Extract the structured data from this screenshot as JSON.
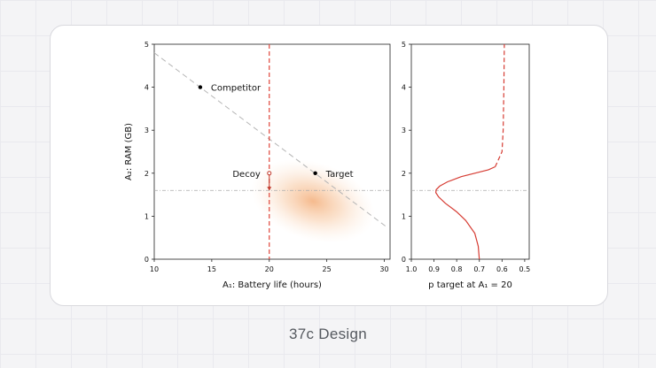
{
  "caption": "37c Design",
  "chart_data": [
    {
      "type": "scatter",
      "xlabel": "A₁: Battery life (hours)",
      "ylabel": "A₂: RAM (GB)",
      "xlim": [
        10,
        30.5
      ],
      "ylim": [
        0,
        5
      ],
      "xticks": [
        "10",
        "15",
        "20",
        "25",
        "30"
      ],
      "yticks": [
        "0",
        "1",
        "2",
        "3",
        "4",
        "5"
      ],
      "points": [
        {
          "label": "Competitor",
          "x": 14,
          "y": 4
        },
        {
          "label": "Target",
          "x": 24,
          "y": 2
        },
        {
          "label": "Decoy",
          "x": 20,
          "y": 2
        }
      ],
      "decoy_arrow": {
        "x": 20,
        "from_y": 2.0,
        "to_y": 1.6
      },
      "indifference_line": {
        "x": [
          10,
          30.2
        ],
        "y": [
          4.8,
          0.75
        ]
      },
      "vertical_line_x": 20,
      "horizontal_line_y": 1.6,
      "density_center": {
        "x": 23.8,
        "y": 1.35
      }
    },
    {
      "type": "line",
      "xlabel": "p target at A₁ = 20",
      "xlim": [
        1.0,
        0.48
      ],
      "ylim": [
        0,
        5
      ],
      "xticks": [
        "1.0",
        "0.9",
        "0.8",
        "0.7",
        "0.6",
        "0.5"
      ],
      "yticks": [
        "0",
        "1",
        "2",
        "3",
        "4",
        "5"
      ],
      "horizontal_line_y": 1.6,
      "curve_y": [
        0,
        0.3,
        0.6,
        0.9,
        1.1,
        1.3,
        1.45,
        1.55,
        1.62,
        1.7,
        1.8,
        1.92,
        2.0,
        2.08,
        2.15
      ],
      "curve_p": [
        0.7,
        0.705,
        0.72,
        0.76,
        0.8,
        0.85,
        0.88,
        0.892,
        0.89,
        0.875,
        0.84,
        0.78,
        0.72,
        0.66,
        0.63
      ],
      "dashed_y": [
        2.15,
        2.5,
        3.0,
        4.0,
        5.0
      ],
      "dashed_p": [
        0.63,
        0.6,
        0.595,
        0.592,
        0.59
      ]
    }
  ]
}
